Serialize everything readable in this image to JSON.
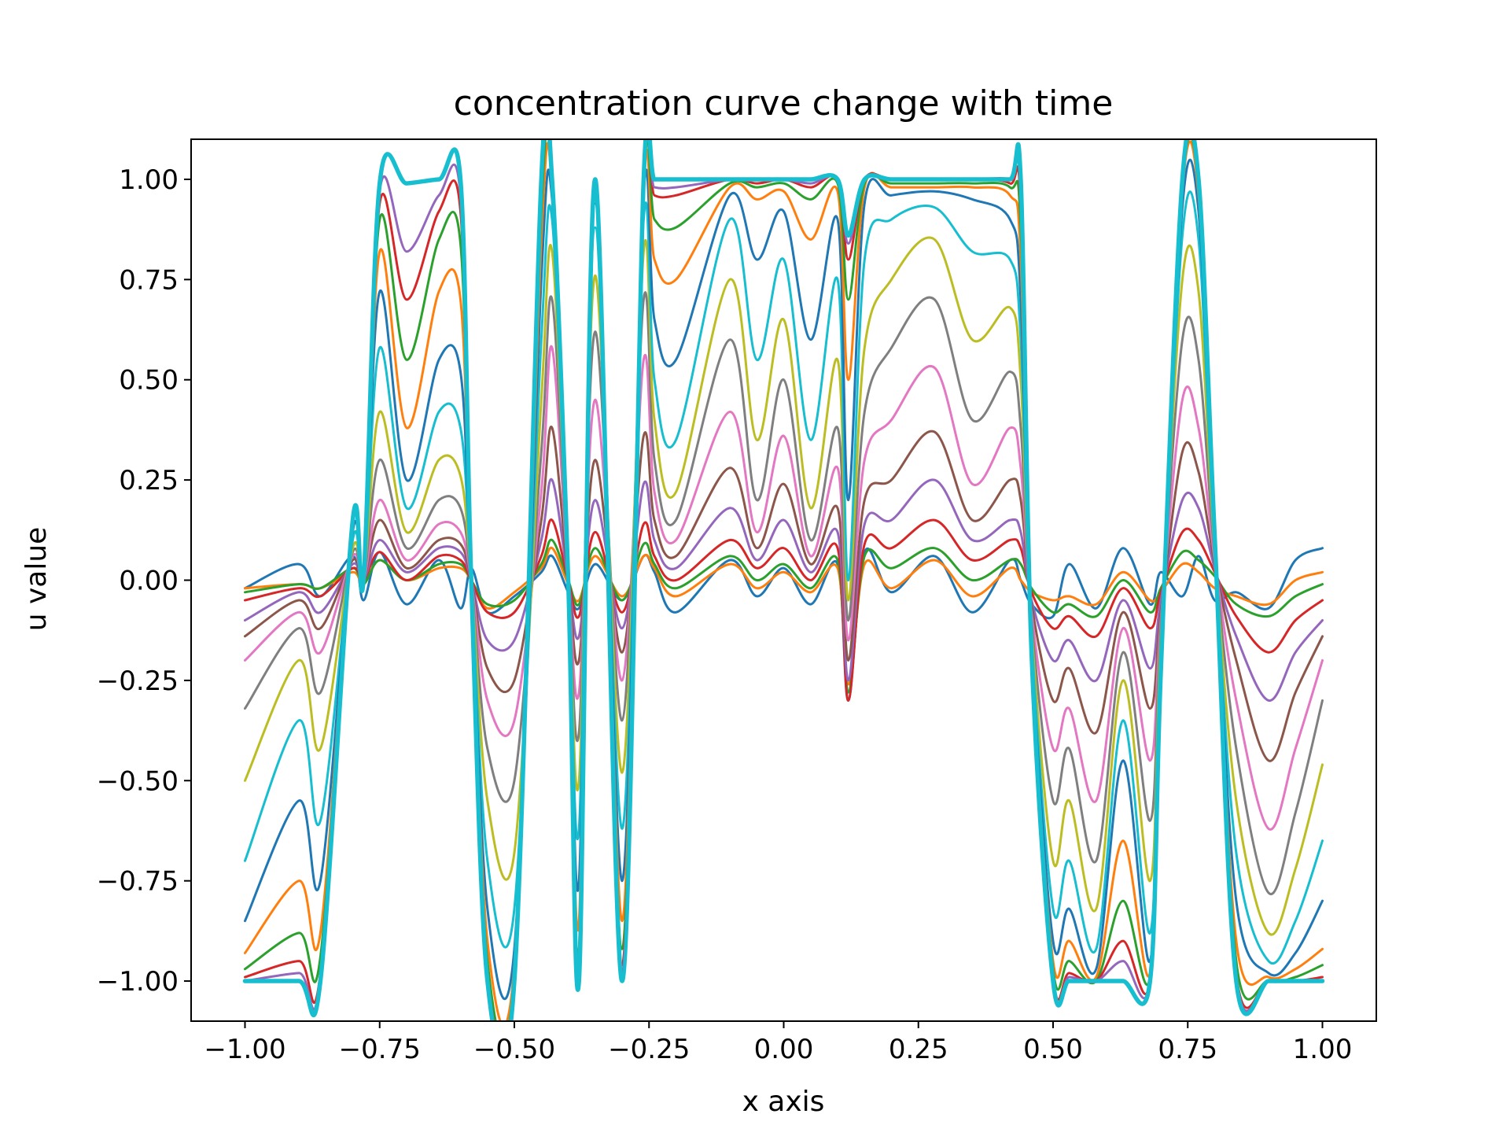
{
  "chart_data": {
    "type": "line",
    "title": "concentration curve change with time",
    "xlabel": "x axis",
    "ylabel": "u value",
    "xlim": [
      -1.1,
      1.1
    ],
    "ylim": [
      -1.1,
      1.1
    ],
    "xticks": [
      -1.0,
      -0.75,
      -0.5,
      -0.25,
      0.0,
      0.25,
      0.5,
      0.75,
      1.0
    ],
    "xtick_labels": [
      "−1.00",
      "−0.75",
      "−0.50",
      "−0.25",
      "0.00",
      "0.25",
      "0.50",
      "0.75",
      "1.00"
    ],
    "yticks": [
      -1.0,
      -0.75,
      -0.5,
      -0.25,
      0.0,
      0.25,
      0.5,
      0.75,
      1.0
    ],
    "ytick_labels": [
      "−1.00",
      "−0.75",
      "−0.50",
      "−0.25",
      "0.00",
      "0.25",
      "0.50",
      "0.75",
      "1.00"
    ],
    "grid": false,
    "legend": false,
    "x": [
      -1.0,
      -0.9,
      -0.86,
      -0.8,
      -0.78,
      -0.75,
      -0.7,
      -0.64,
      -0.6,
      -0.58,
      -0.55,
      -0.5,
      -0.45,
      -0.43,
      -0.4,
      -0.38,
      -0.35,
      -0.3,
      -0.26,
      -0.24,
      -0.2,
      -0.1,
      -0.05,
      0.0,
      0.05,
      0.1,
      0.12,
      0.15,
      0.2,
      0.28,
      0.35,
      0.42,
      0.44,
      0.46,
      0.5,
      0.53,
      0.58,
      0.63,
      0.68,
      0.7,
      0.74,
      0.77,
      0.8,
      0.84,
      0.9,
      0.95,
      1.0
    ],
    "series": [
      {
        "color": "#1f77b4",
        "width": 3.0,
        "values": [
          -0.02,
          0.04,
          -0.04,
          0.06,
          -0.05,
          0.07,
          -0.06,
          0.05,
          -0.07,
          0.03,
          -0.08,
          -0.04,
          0.02,
          0.06,
          -0.03,
          -0.07,
          0.04,
          -0.05,
          0.06,
          0.02,
          -0.08,
          0.05,
          -0.04,
          0.03,
          -0.06,
          0.04,
          -0.3,
          0.07,
          -0.03,
          0.06,
          -0.08,
          0.05,
          0.0,
          -0.06,
          -0.09,
          0.04,
          -0.07,
          0.08,
          -0.06,
          0.02,
          -0.04,
          0.06,
          -0.05,
          -0.03,
          -0.07,
          0.05,
          0.08
        ]
      },
      {
        "color": "#ff7f0e",
        "width": 3.0,
        "values": [
          -0.02,
          -0.01,
          -0.02,
          0.02,
          -0.01,
          0.05,
          0.0,
          0.03,
          0.03,
          0.0,
          -0.07,
          -0.03,
          0.03,
          0.08,
          -0.01,
          -0.05,
          0.06,
          -0.04,
          0.06,
          0.03,
          -0.04,
          0.04,
          -0.02,
          0.02,
          -0.03,
          0.03,
          -0.26,
          0.04,
          -0.02,
          0.05,
          -0.04,
          0.03,
          0.0,
          -0.03,
          -0.05,
          -0.04,
          -0.06,
          0.02,
          -0.05,
          -0.03,
          0.04,
          0.02,
          -0.02,
          -0.04,
          -0.06,
          0.0,
          0.02
        ]
      },
      {
        "color": "#2ca02c",
        "width": 3.0,
        "values": [
          -0.03,
          -0.01,
          -0.02,
          0.03,
          -0.01,
          0.05,
          0.0,
          0.04,
          0.04,
          0.0,
          -0.06,
          -0.05,
          0.04,
          0.1,
          0.0,
          -0.06,
          0.08,
          -0.05,
          0.09,
          0.04,
          -0.02,
          0.06,
          0.0,
          0.04,
          -0.02,
          0.05,
          -0.28,
          0.06,
          0.03,
          0.08,
          0.0,
          0.05,
          0.04,
          -0.02,
          -0.08,
          -0.06,
          -0.09,
          0.0,
          -0.08,
          -0.02,
          0.07,
          0.05,
          0.01,
          -0.06,
          -0.09,
          -0.04,
          -0.01
        ]
      },
      {
        "color": "#d62728",
        "width": 3.0,
        "values": [
          -0.05,
          -0.02,
          -0.04,
          0.03,
          0.0,
          0.07,
          0.0,
          0.06,
          0.05,
          0.0,
          -0.08,
          -0.08,
          0.06,
          0.15,
          0.0,
          -0.09,
          0.12,
          -0.08,
          0.14,
          0.06,
          0.0,
          0.1,
          0.03,
          0.08,
          0.0,
          0.08,
          -0.3,
          0.09,
          0.08,
          0.15,
          0.05,
          0.1,
          0.08,
          -0.03,
          -0.12,
          -0.09,
          -0.14,
          -0.02,
          -0.12,
          -0.03,
          0.12,
          0.1,
          0.02,
          -0.09,
          -0.18,
          -0.1,
          -0.05
        ]
      },
      {
        "color": "#9467bd",
        "width": 3.0,
        "values": [
          -0.1,
          -0.03,
          -0.08,
          0.04,
          0.0,
          0.1,
          0.02,
          0.08,
          0.07,
          0.0,
          -0.15,
          -0.15,
          0.1,
          0.25,
          0.0,
          -0.14,
          0.2,
          -0.12,
          0.24,
          0.1,
          0.03,
          0.18,
          0.05,
          0.15,
          0.02,
          0.12,
          -0.25,
          0.14,
          0.15,
          0.25,
          0.1,
          0.15,
          0.12,
          -0.05,
          -0.2,
          -0.15,
          -0.25,
          -0.05,
          -0.22,
          -0.05,
          0.2,
          0.18,
          0.03,
          -0.14,
          -0.3,
          -0.18,
          -0.1
        ]
      },
      {
        "color": "#8c564b",
        "width": 3.0,
        "values": [
          -0.14,
          -0.05,
          -0.12,
          0.05,
          0.0,
          0.15,
          0.03,
          0.1,
          0.09,
          0.0,
          -0.22,
          -0.25,
          0.15,
          0.38,
          0.0,
          -0.2,
          0.3,
          -0.18,
          0.36,
          0.15,
          0.06,
          0.28,
          0.08,
          0.24,
          0.04,
          0.18,
          -0.2,
          0.2,
          0.25,
          0.37,
          0.15,
          0.25,
          0.2,
          -0.06,
          -0.3,
          -0.22,
          -0.38,
          -0.08,
          -0.32,
          -0.08,
          0.32,
          0.27,
          0.04,
          -0.2,
          -0.45,
          -0.28,
          -0.14
        ]
      },
      {
        "color": "#e377c2",
        "width": 3.0,
        "values": [
          -0.2,
          -0.08,
          -0.18,
          0.06,
          0.0,
          0.2,
          0.05,
          0.14,
          0.12,
          0.0,
          -0.3,
          -0.35,
          0.22,
          0.58,
          0.0,
          -0.28,
          0.45,
          -0.25,
          0.55,
          0.22,
          0.1,
          0.42,
          0.12,
          0.36,
          0.06,
          0.28,
          -0.15,
          0.3,
          0.4,
          0.53,
          0.24,
          0.38,
          0.28,
          -0.08,
          -0.42,
          -0.32,
          -0.55,
          -0.12,
          -0.45,
          -0.1,
          0.45,
          0.38,
          0.05,
          -0.3,
          -0.62,
          -0.42,
          -0.2
        ]
      },
      {
        "color": "#7f7f7f",
        "width": 3.0,
        "values": [
          -0.32,
          -0.12,
          -0.28,
          0.07,
          0.0,
          0.3,
          0.08,
          0.2,
          0.18,
          0.0,
          -0.42,
          -0.5,
          0.32,
          0.7,
          0.0,
          -0.38,
          0.62,
          -0.35,
          0.7,
          0.3,
          0.15,
          0.6,
          0.2,
          0.5,
          0.1,
          0.38,
          -0.1,
          0.42,
          0.58,
          0.7,
          0.4,
          0.52,
          0.38,
          -0.1,
          -0.55,
          -0.42,
          -0.7,
          -0.18,
          -0.6,
          -0.12,
          0.6,
          0.55,
          0.06,
          -0.42,
          -0.78,
          -0.58,
          -0.3
        ]
      },
      {
        "color": "#bcbd22",
        "width": 3.0,
        "values": [
          -0.5,
          -0.2,
          -0.42,
          0.08,
          0.0,
          0.42,
          0.12,
          0.3,
          0.26,
          0.0,
          -0.55,
          -0.68,
          0.45,
          0.82,
          0.0,
          -0.5,
          0.76,
          -0.48,
          0.82,
          0.4,
          0.22,
          0.75,
          0.35,
          0.65,
          0.18,
          0.55,
          -0.05,
          0.58,
          0.75,
          0.85,
          0.6,
          0.68,
          0.5,
          -0.12,
          -0.7,
          -0.55,
          -0.82,
          -0.25,
          -0.75,
          -0.15,
          0.75,
          0.72,
          0.07,
          -0.55,
          -0.88,
          -0.72,
          -0.46
        ]
      },
      {
        "color": "#17becf",
        "width": 3.0,
        "values": [
          -0.7,
          -0.35,
          -0.6,
          0.1,
          0.0,
          0.58,
          0.18,
          0.42,
          0.38,
          0.0,
          -0.7,
          -0.82,
          0.6,
          0.9,
          0.0,
          -0.62,
          0.88,
          -0.62,
          0.9,
          0.5,
          0.35,
          0.9,
          0.55,
          0.8,
          0.35,
          0.75,
          0.0,
          0.8,
          0.9,
          0.93,
          0.82,
          0.8,
          0.6,
          -0.14,
          -0.82,
          -0.7,
          -0.92,
          -0.35,
          -0.88,
          -0.18,
          0.86,
          0.85,
          0.08,
          -0.68,
          -0.95,
          -0.85,
          -0.65
        ]
      },
      {
        "color": "#1f77b4",
        "width": 3.0,
        "values": [
          -0.85,
          -0.55,
          -0.75,
          0.12,
          0.0,
          0.72,
          0.25,
          0.55,
          0.52,
          0.0,
          -0.82,
          -0.92,
          0.75,
          0.95,
          0.0,
          -0.75,
          0.94,
          -0.75,
          0.96,
          0.65,
          0.55,
          0.96,
          0.8,
          0.92,
          0.6,
          0.9,
          0.2,
          0.94,
          0.96,
          0.97,
          0.95,
          0.9,
          0.7,
          -0.16,
          -0.9,
          -0.82,
          -0.97,
          -0.45,
          -0.95,
          -0.2,
          0.93,
          0.92,
          0.09,
          -0.8,
          -0.98,
          -0.93,
          -0.8
        ]
      },
      {
        "color": "#ff7f0e",
        "width": 3.0,
        "values": [
          -0.93,
          -0.75,
          -0.88,
          0.14,
          0.0,
          0.82,
          0.38,
          0.72,
          0.7,
          0.0,
          -0.9,
          -0.96,
          0.85,
          0.98,
          0.0,
          -0.85,
          0.97,
          -0.85,
          0.98,
          0.8,
          0.75,
          0.98,
          0.95,
          0.97,
          0.85,
          0.97,
          0.5,
          0.98,
          0.98,
          0.98,
          0.98,
          0.96,
          0.8,
          -0.18,
          -0.95,
          -0.9,
          -0.99,
          -0.65,
          -0.98,
          -0.22,
          0.97,
          0.96,
          0.1,
          -0.9,
          -0.99,
          -0.97,
          -0.92
        ]
      },
      {
        "color": "#2ca02c",
        "width": 3.0,
        "values": [
          -0.97,
          -0.88,
          -0.94,
          0.15,
          0.0,
          0.9,
          0.55,
          0.85,
          0.84,
          0.0,
          -0.95,
          -0.98,
          0.92,
          0.99,
          0.0,
          -0.92,
          0.99,
          -0.92,
          0.99,
          0.9,
          0.88,
          0.99,
          0.98,
          0.99,
          0.95,
          0.99,
          0.7,
          0.99,
          0.99,
          0.99,
          0.99,
          0.98,
          0.88,
          -0.18,
          -0.97,
          -0.95,
          -1.0,
          -0.8,
          -0.99,
          -0.23,
          0.98,
          0.98,
          0.11,
          -0.95,
          -1.0,
          -0.99,
          -0.96
        ]
      },
      {
        "color": "#d62728",
        "width": 3.0,
        "values": [
          -0.99,
          -0.95,
          -0.98,
          0.15,
          0.0,
          0.94,
          0.7,
          0.92,
          0.92,
          0.0,
          -0.98,
          -0.99,
          0.96,
          1.0,
          0.0,
          -0.96,
          1.0,
          -0.96,
          1.0,
          0.96,
          0.96,
          1.0,
          0.99,
          1.0,
          0.98,
          1.0,
          0.8,
          1.0,
          1.0,
          1.0,
          1.0,
          0.99,
          0.93,
          -0.18,
          -0.99,
          -0.98,
          -1.0,
          -0.9,
          -1.0,
          -0.23,
          0.99,
          0.99,
          0.11,
          -0.98,
          -1.0,
          -1.0,
          -0.99
        ]
      },
      {
        "color": "#9467bd",
        "width": 3.0,
        "values": [
          -1.0,
          -0.98,
          -0.99,
          0.15,
          0.0,
          0.97,
          0.82,
          0.96,
          0.96,
          0.0,
          -0.99,
          -1.0,
          0.98,
          1.0,
          0.0,
          -0.98,
          1.0,
          -0.98,
          1.0,
          0.98,
          0.98,
          1.0,
          1.0,
          1.0,
          0.99,
          1.0,
          0.84,
          1.0,
          1.0,
          1.0,
          1.0,
          1.0,
          0.96,
          -0.18,
          -1.0,
          -0.99,
          -1.0,
          -0.95,
          -1.0,
          -0.23,
          1.0,
          1.0,
          0.11,
          -0.99,
          -1.0,
          -1.0,
          -1.0
        ]
      },
      {
        "color": "#17becf",
        "width": 5.5,
        "values": [
          -1.0,
          -1.0,
          -1.0,
          0.15,
          0.0,
          0.99,
          0.99,
          1.0,
          1.0,
          0.0,
          -1.0,
          -1.0,
          1.0,
          1.0,
          0.0,
          -1.0,
          1.0,
          -1.0,
          1.0,
          1.0,
          1.0,
          1.0,
          1.0,
          1.0,
          1.0,
          1.0,
          0.86,
          1.0,
          1.0,
          1.0,
          1.0,
          1.0,
          1.0,
          -0.18,
          -1.0,
          -1.0,
          -1.0,
          -1.0,
          -1.0,
          -0.23,
          1.0,
          1.0,
          0.11,
          -1.0,
          -1.0,
          -1.0,
          -1.0
        ]
      }
    ]
  }
}
